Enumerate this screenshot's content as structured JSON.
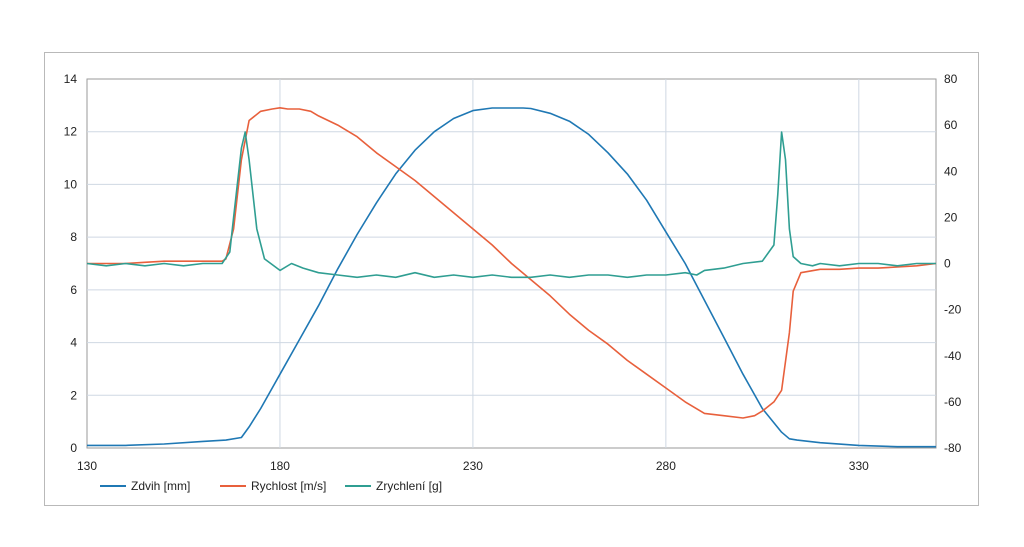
{
  "chart_data": {
    "type": "line",
    "title": "",
    "xlabel": "",
    "ylabel": "",
    "y2label": "",
    "grid": true,
    "legend_position": "bottom",
    "xlim": [
      130,
      350
    ],
    "xticks": [
      130,
      180,
      230,
      280,
      330
    ],
    "ylim": [
      0,
      14
    ],
    "yticks": [
      0,
      2,
      4,
      6,
      8,
      10,
      12,
      14
    ],
    "y2lim": [
      -80,
      80
    ],
    "y2ticks": [
      -80,
      -60,
      -40,
      -20,
      0,
      20,
      40,
      60,
      80
    ],
    "series": [
      {
        "name": "Zdvih [mm]",
        "axis": "left",
        "color": "#1f78b4",
        "x": [
          130,
          140,
          150,
          160,
          166,
          170,
          172,
          175,
          180,
          185,
          190,
          195,
          200,
          205,
          210,
          215,
          220,
          225,
          230,
          235,
          240,
          243,
          245,
          250,
          255,
          260,
          265,
          270,
          275,
          280,
          285,
          290,
          295,
          300,
          305,
          310,
          312,
          314,
          320,
          330,
          340,
          350
        ],
        "y": [
          0.1,
          0.1,
          0.15,
          0.25,
          0.3,
          0.4,
          0.8,
          1.5,
          2.8,
          4.1,
          5.4,
          6.8,
          8.1,
          9.3,
          10.4,
          11.3,
          12.0,
          12.5,
          12.8,
          12.9,
          12.9,
          12.9,
          12.88,
          12.7,
          12.4,
          11.9,
          11.2,
          10.4,
          9.4,
          8.2,
          7.0,
          5.6,
          4.2,
          2.8,
          1.5,
          0.6,
          0.35,
          0.3,
          0.2,
          0.1,
          0.05,
          0.05
        ]
      },
      {
        "name": "Rychlost [m/s]",
        "axis": "right",
        "color": "#e8603c",
        "x": [
          130,
          135,
          140,
          145,
          150,
          155,
          160,
          165,
          166,
          168,
          170,
          172,
          175,
          178,
          180,
          182,
          185,
          188,
          190,
          195,
          200,
          205,
          210,
          215,
          220,
          225,
          230,
          235,
          240,
          245,
          250,
          255,
          260,
          265,
          270,
          275,
          280,
          285,
          290,
          295,
          300,
          303,
          305,
          308,
          310,
          312,
          313,
          315,
          320,
          325,
          330,
          335,
          340,
          345,
          350
        ],
        "y": [
          0,
          0,
          0,
          0.5,
          1,
          1,
          1,
          1,
          2,
          15,
          45,
          62,
          66,
          67,
          67.5,
          67,
          67,
          66,
          64,
          60,
          55,
          48,
          42,
          36,
          29,
          22,
          15,
          8,
          0,
          -7,
          -14,
          -22,
          -29,
          -35,
          -42,
          -48,
          -54,
          -60,
          -65,
          -66,
          -67,
          -66,
          -64,
          -60,
          -55,
          -30,
          -12,
          -4,
          -2.5,
          -2.5,
          -2,
          -2,
          -1.5,
          -1,
          0
        ]
      },
      {
        "name": "Zrychlení [g]",
        "axis": "right",
        "color": "#2f9e92",
        "x": [
          130,
          135,
          140,
          145,
          150,
          155,
          160,
          165,
          167,
          168,
          170,
          171,
          172,
          174,
          176,
          180,
          183,
          186,
          190,
          195,
          200,
          205,
          210,
          215,
          220,
          225,
          230,
          235,
          240,
          245,
          250,
          255,
          260,
          265,
          270,
          275,
          280,
          285,
          288,
          290,
          295,
          300,
          305,
          308,
          309,
          310,
          311,
          312,
          313,
          315,
          318,
          320,
          325,
          330,
          335,
          340,
          345,
          350
        ],
        "y": [
          0,
          -1,
          0,
          -1,
          0,
          -1,
          0,
          0,
          5,
          20,
          50,
          57,
          45,
          15,
          2,
          -3,
          0,
          -2,
          -4,
          -5,
          -6,
          -5,
          -6,
          -4,
          -6,
          -5,
          -6,
          -5,
          -6,
          -6,
          -5,
          -6,
          -5,
          -5,
          -6,
          -5,
          -5,
          -4,
          -5,
          -3,
          -2,
          0,
          1,
          8,
          30,
          57,
          45,
          15,
          3,
          0,
          -1,
          0,
          -1,
          0,
          0,
          -1,
          0,
          0
        ]
      }
    ]
  }
}
